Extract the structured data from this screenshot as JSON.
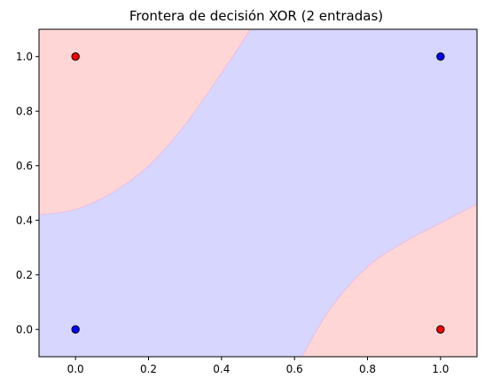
{
  "chart_data": {
    "type": "scatter",
    "title": "Frontera de decisión XOR (2 entradas)",
    "xlabel": "",
    "ylabel": "",
    "xlim": [
      -0.1,
      1.1
    ],
    "ylim": [
      -0.1,
      1.1
    ],
    "xticks": [
      "0.0",
      "0.2",
      "0.4",
      "0.6",
      "0.8",
      "1.0"
    ],
    "yticks": [
      "0.0",
      "0.2",
      "0.4",
      "0.6",
      "0.8",
      "1.0"
    ],
    "grid": false,
    "legend": "none",
    "colors": {
      "class_red_region": "#ffd6d6",
      "class_blue_region": "#d6d6ff",
      "class_red_point": "#ff0000",
      "class_blue_point": "#0000ff",
      "point_edge": "#000000"
    },
    "points": [
      {
        "x": 0,
        "y": 0,
        "class": "blue"
      },
      {
        "x": 0,
        "y": 1,
        "class": "red"
      },
      {
        "x": 1,
        "y": 0,
        "class": "red"
      },
      {
        "x": 1,
        "y": 1,
        "class": "blue"
      }
    ],
    "boundary_upper_left": [
      [
        -0.1,
        0.42
      ],
      [
        0.0,
        0.44
      ],
      [
        0.1,
        0.5
      ],
      [
        0.2,
        0.6
      ],
      [
        0.3,
        0.75
      ],
      [
        0.4,
        0.94
      ],
      [
        0.48,
        1.1
      ]
    ],
    "boundary_lower_right": [
      [
        0.62,
        -0.1
      ],
      [
        0.7,
        0.08
      ],
      [
        0.8,
        0.23
      ],
      [
        0.9,
        0.32
      ],
      [
        1.0,
        0.39
      ],
      [
        1.1,
        0.46
      ]
    ]
  }
}
